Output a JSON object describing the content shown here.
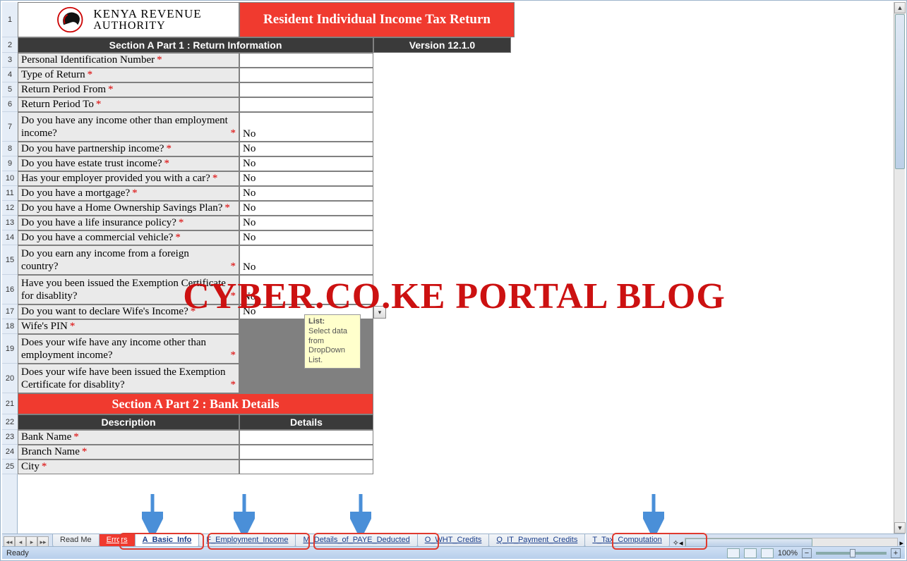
{
  "header": {
    "authority_line1": "KENYA REVENUE",
    "authority_line2": "AUTHORITY",
    "form_title": "Resident Individual Income Tax Return",
    "section_a1": "Section A Part 1 : Return Information",
    "version": "Version 12.1.0",
    "section_a2": "Section A Part 2 : Bank Details",
    "desc_hdr": "Description",
    "details_hdr": "Details"
  },
  "rows": [
    {
      "n": 3,
      "label": "Personal Identification Number",
      "val": "",
      "req": true
    },
    {
      "n": 4,
      "label": "Type of Return",
      "val": "",
      "req": true
    },
    {
      "n": 5,
      "label": "Return Period From",
      "val": "",
      "req": true
    },
    {
      "n": 6,
      "label": "Return Period To",
      "val": "",
      "req": true
    },
    {
      "n": 7,
      "label": "Do you have any income other than employment income?",
      "val": "No",
      "req": true
    },
    {
      "n": 8,
      "label": "Do you have partnership income?",
      "val": "No",
      "req": true
    },
    {
      "n": 9,
      "label": "Do you have estate trust income?",
      "val": "No",
      "req": true
    },
    {
      "n": 10,
      "label": "Has your employer provided you with a car?",
      "val": "No",
      "req": true
    },
    {
      "n": 11,
      "label": "Do you have a mortgage?",
      "val": "No",
      "req": true
    },
    {
      "n": 12,
      "label": "Do you have a Home Ownership Savings Plan?",
      "val": "No",
      "req": true
    },
    {
      "n": 13,
      "label": "Do you have a life insurance policy?",
      "val": "No",
      "req": true
    },
    {
      "n": 14,
      "label": "Do you have a commercial vehicle?",
      "val": "No",
      "req": true
    },
    {
      "n": 15,
      "label": "Do you earn any income from a foreign country?",
      "val": "No",
      "req": true
    },
    {
      "n": 16,
      "label": "Have you been issued the Exemption Certificate for disablity?",
      "val": "No",
      "req": true
    },
    {
      "n": 17,
      "label": "Do you want to declare Wife's Income?",
      "val": "No",
      "req": true
    },
    {
      "n": 18,
      "label": "Wife's PIN",
      "val": "",
      "req": true,
      "disabled": true
    },
    {
      "n": 19,
      "label": "Does your wife have any income other than employment income?",
      "val": "",
      "req": true,
      "disabled": true
    },
    {
      "n": 20,
      "label": "Does your wife have been issued the Exemption Certificate for disablity?",
      "val": "",
      "req": true,
      "disabled": true
    }
  ],
  "bank_rows": [
    {
      "n": 23,
      "label": "Bank Name",
      "req": true
    },
    {
      "n": 24,
      "label": "Branch Name",
      "req": true
    },
    {
      "n": 25,
      "label": "City",
      "req": true
    }
  ],
  "tooltip": {
    "title": "List:",
    "body": "Select data from DropDown List."
  },
  "tabs": [
    {
      "label": "Read Me",
      "kind": "plain"
    },
    {
      "label": "Errors",
      "kind": "err"
    },
    {
      "label": "A_Basic_Info",
      "kind": "active"
    },
    {
      "label": "F_Employment_Income",
      "kind": "link"
    },
    {
      "label": "M_Details_of_PAYE_Deducted",
      "kind": "link"
    },
    {
      "label": "O_WHT_Credits",
      "kind": "link"
    },
    {
      "label": "Q_IT_Payment_Credits",
      "kind": "link"
    },
    {
      "label": "T_Tax_Computation",
      "kind": "link"
    }
  ],
  "status": {
    "left": "Ready",
    "zoom": "100%"
  },
  "watermark": "CYBER.CO.KE PORTAL BLOG",
  "layout": {
    "col_rowhdr_w": 22,
    "col_label_w": 314,
    "col_val_w": 190,
    "title_w": 390,
    "version_w": 195
  },
  "colors": {
    "hdr_red": "#f03a2f",
    "hdr_dark": "#3a3a3a",
    "cell_label_bg": "#eaeaea",
    "disabled_bg": "#808080",
    "accent_blue": "#4a8fd8"
  }
}
